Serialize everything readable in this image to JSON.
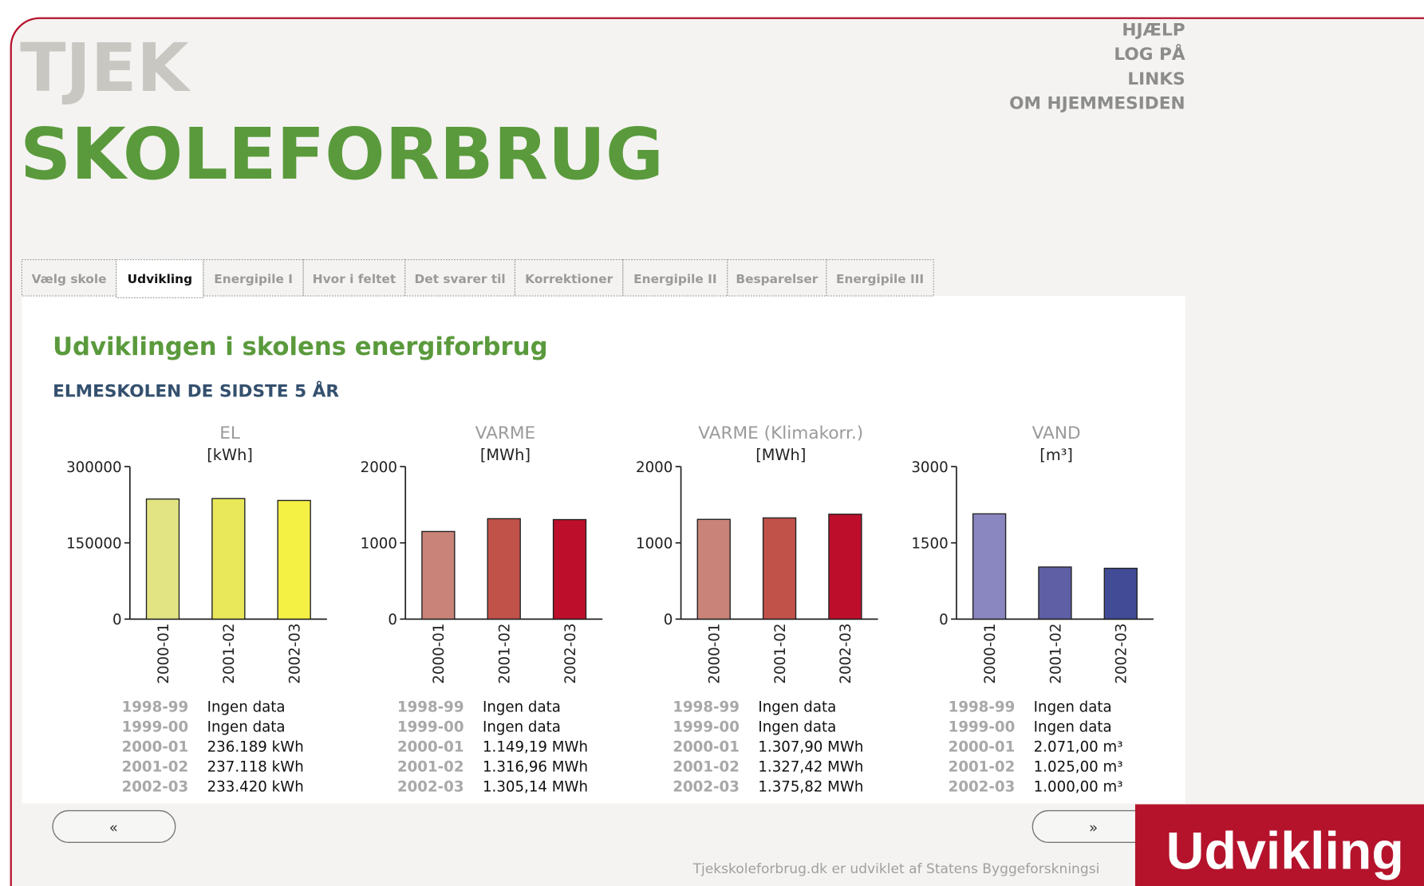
{
  "header": {
    "brand_top": "TJEK",
    "brand_main": "SKOLEFORBRUG"
  },
  "menu": [
    "HJÆLP",
    "LOG PÅ",
    "LINKS",
    "OM HJEMMESIDEN"
  ],
  "nav": {
    "tabs": [
      "Vælg skole",
      "Udvikling",
      "Energipile I",
      "Hvor i feltet",
      "Det svarer til",
      "Korrektioner",
      "Energipile II",
      "Besparelser",
      "Energipile III"
    ],
    "active_tab": 1
  },
  "content": {
    "heading": "Udviklingen i skolens energiforbrug",
    "subheading": "ELMESKOLEN DE SIDSTE 5 ÅR"
  },
  "chart_data": [
    {
      "type": "bar",
      "title": "EL",
      "unit": "[kWh]",
      "categories": [
        "2000-01",
        "2001-02",
        "2002-03"
      ],
      "values": [
        236189,
        237118,
        233420
      ],
      "colors": [
        "#e2e383",
        "#e8e85a",
        "#f5f044"
      ],
      "ylim": [
        0,
        300000
      ],
      "yticks": [
        0,
        150000,
        300000
      ],
      "table": [
        {
          "year": "1998-99",
          "text": "Ingen data"
        },
        {
          "year": "1999-00",
          "text": "Ingen data"
        },
        {
          "year": "2000-01",
          "text": "236.189 kWh"
        },
        {
          "year": "2001-02",
          "text": "237.118 kWh"
        },
        {
          "year": "2002-03",
          "text": "233.420 kWh"
        }
      ]
    },
    {
      "type": "bar",
      "title": "VARME",
      "unit": "[MWh]",
      "categories": [
        "2000-01",
        "2001-02",
        "2002-03"
      ],
      "values": [
        1149.19,
        1316.96,
        1305.14
      ],
      "colors": [
        "#c98378",
        "#c1524a",
        "#bd0f2c"
      ],
      "ylim": [
        0,
        2000
      ],
      "yticks": [
        0,
        1000,
        2000
      ],
      "table": [
        {
          "year": "1998-99",
          "text": "Ingen data"
        },
        {
          "year": "1999-00",
          "text": "Ingen data"
        },
        {
          "year": "2000-01",
          "text": "1.149,19 MWh"
        },
        {
          "year": "2001-02",
          "text": "1.316,96 MWh"
        },
        {
          "year": "2002-03",
          "text": "1.305,14 MWh"
        }
      ]
    },
    {
      "type": "bar",
      "title": "VARME (Klimakorr.)",
      "unit": "[MWh]",
      "categories": [
        "2000-01",
        "2001-02",
        "2002-03"
      ],
      "values": [
        1307.9,
        1327.42,
        1375.82
      ],
      "colors": [
        "#c98378",
        "#c1524a",
        "#bd0f2c"
      ],
      "ylim": [
        0,
        2000
      ],
      "yticks": [
        0,
        1000,
        2000
      ],
      "table": [
        {
          "year": "1998-99",
          "text": "Ingen data"
        },
        {
          "year": "1999-00",
          "text": "Ingen data"
        },
        {
          "year": "2000-01",
          "text": "1.307,90 MWh"
        },
        {
          "year": "2001-02",
          "text": "1.327,42 MWh"
        },
        {
          "year": "2002-03",
          "text": "1.375,82 MWh"
        }
      ]
    },
    {
      "type": "bar",
      "title": "VAND",
      "unit": "[m³]",
      "categories": [
        "2000-01",
        "2001-02",
        "2002-03"
      ],
      "values": [
        2071,
        1025,
        1000
      ],
      "colors": [
        "#8a87c0",
        "#5e5fa5",
        "#424b96"
      ],
      "ylim": [
        0,
        3000
      ],
      "yticks": [
        0,
        1500,
        3000
      ],
      "table": [
        {
          "year": "1998-99",
          "text": "Ingen data"
        },
        {
          "year": "1999-00",
          "text": "Ingen data"
        },
        {
          "year": "2000-01",
          "text": "2.071,00 m³"
        },
        {
          "year": "2001-02",
          "text": "1.025,00 m³"
        },
        {
          "year": "2002-03",
          "text": "1.000,00 m³"
        }
      ]
    }
  ],
  "buttons": {
    "prev": "«",
    "next": "»"
  },
  "footer": "Tjekskoleforbrug.dk er udviklet af Statens Byggeforskningsi",
  "page_label": "Udvikling"
}
